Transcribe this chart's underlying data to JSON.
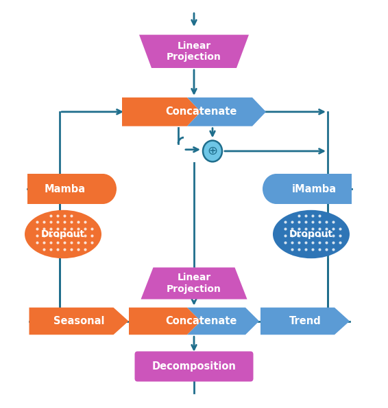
{
  "colors": {
    "orange": "#F07030",
    "blue": "#5B9BD5",
    "blue_dark": "#2E75B6",
    "pink": "#CC55BB",
    "teal": "#1F6E8C",
    "white": "#FFFFFF"
  },
  "labels": {
    "linear_proj_top": "Linear\nProjection",
    "concatenate_top": "Concatenate",
    "mamba": "Mamba",
    "imamba": "iMamba",
    "dropout_left": "Dropout",
    "dropout_right": "Dropout",
    "linear_proj_mid": "Linear\nProjection",
    "concatenate_mid": "Concatenate",
    "seasonal": "Seasonal",
    "trend": "Trend",
    "decomposition": "Decomposition"
  },
  "background": "#FFFFFF"
}
